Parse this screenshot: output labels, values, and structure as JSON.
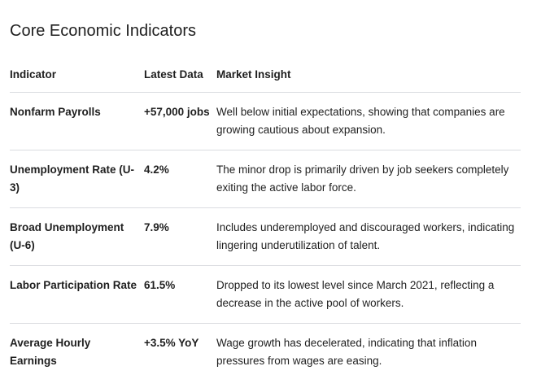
{
  "title": "Core Economic Indicators",
  "table": {
    "headers": {
      "indicator": "Indicator",
      "latest_data": "Latest Data",
      "market_insight": "Market Insight"
    },
    "rows": [
      {
        "indicator": "Nonfarm Payrolls",
        "latest_data": "+57,000 jobs",
        "market_insight": "Well below initial expectations, showing that companies are growing cautious about expansion."
      },
      {
        "indicator": "Unemployment Rate (U-3)",
        "latest_data": "4.2%",
        "market_insight": "The minor drop is primarily driven by job seekers completely exiting the active labor force."
      },
      {
        "indicator": "Broad Unemployment (U-6)",
        "latest_data": "7.9%",
        "market_insight": "Includes underemployed and discouraged workers, indicating lingering underutilization of talent."
      },
      {
        "indicator": "Labor Participation Rate",
        "latest_data": "61.5%",
        "market_insight": "Dropped to its lowest level since March 2021, reflecting a decrease in the active pool of workers."
      },
      {
        "indicator": "Average Hourly Earnings",
        "latest_data": "+3.5% YoY",
        "market_insight": "Wage growth has decelerated, indicating that inflation pressures from wages are easing."
      }
    ]
  }
}
